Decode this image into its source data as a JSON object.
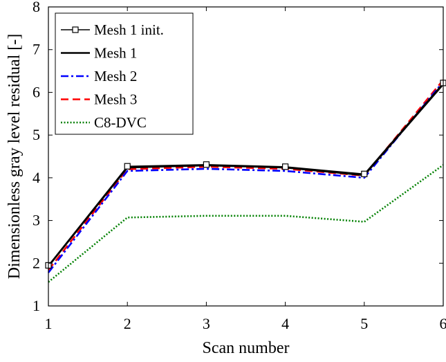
{
  "chart_data": {
    "type": "line",
    "xlabel": "Scan number",
    "ylabel": "Dimensionless gray level residual [-]",
    "xlim": [
      1,
      6
    ],
    "ylim": [
      1,
      8
    ],
    "xticks": [
      "1",
      "2",
      "3",
      "4",
      "5",
      "6"
    ],
    "yticks": [
      "1",
      "2",
      "3",
      "4",
      "5",
      "6",
      "7",
      "8"
    ],
    "grid": false,
    "legend_position": "top-left",
    "x": [
      1,
      2,
      3,
      4,
      5,
      6
    ],
    "series": [
      {
        "name": "Mesh 1 init.",
        "values": [
          1.95,
          4.27,
          4.31,
          4.26,
          4.09,
          6.22
        ],
        "color": "#000000",
        "style": "solid-square-markers"
      },
      {
        "name": "Mesh 1",
        "values": [
          1.93,
          4.24,
          4.29,
          4.24,
          4.06,
          6.19
        ],
        "color": "#000000",
        "style": "solid"
      },
      {
        "name": "Mesh 2",
        "values": [
          1.78,
          4.16,
          4.21,
          4.16,
          4.0,
          6.25
        ],
        "color": "#0000ff",
        "style": "dash-dot"
      },
      {
        "name": "Mesh 3",
        "values": [
          1.84,
          4.2,
          4.26,
          4.21,
          4.05,
          6.29
        ],
        "color": "#ff0000",
        "style": "dashed"
      },
      {
        "name": "C8-DVC",
        "values": [
          1.56,
          3.07,
          3.11,
          3.11,
          2.97,
          4.3
        ],
        "color": "#008000",
        "style": "dotted"
      }
    ]
  }
}
